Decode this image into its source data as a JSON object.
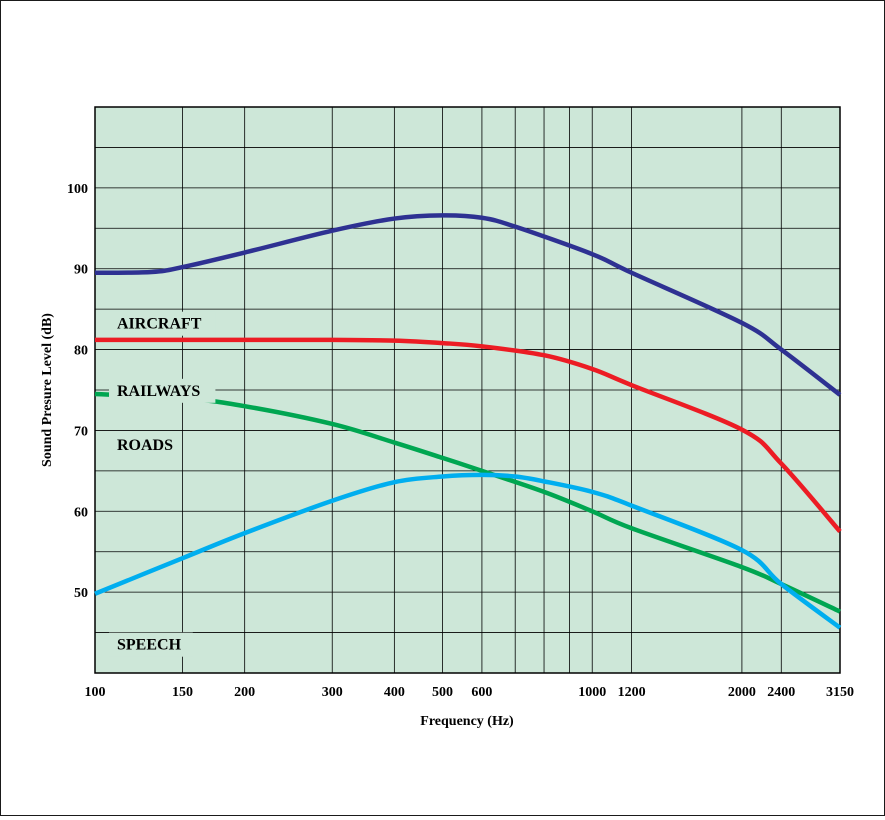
{
  "chart_data": {
    "type": "line",
    "xlabel": "Frequency (Hz)",
    "ylabel": "Sound Presure Level (dB)",
    "x_scale": "log",
    "xlim": [
      100,
      3150
    ],
    "ylim": [
      40,
      110
    ],
    "grid": true,
    "x_ticks": [
      100,
      150,
      200,
      300,
      400,
      500,
      600,
      1000,
      1200,
      2000,
      2400,
      3150
    ],
    "x_tick_labels": [
      "100",
      "150",
      "200",
      "300",
      "400",
      "500",
      "600",
      "1000",
      "1200",
      "2000",
      "2400",
      "3150"
    ],
    "x_minor_gridlines": [
      700,
      800,
      900
    ],
    "y_gridlines": [
      45,
      50,
      55,
      60,
      65,
      70,
      75,
      80,
      85,
      90,
      95,
      100,
      105
    ],
    "y_ticks": [
      50,
      60,
      70,
      80,
      90,
      100
    ],
    "y_tick_labels": [
      "50",
      "60",
      "70",
      "80",
      "90",
      "100"
    ],
    "series": [
      {
        "name": "AIRCRAFT",
        "color": "#2e3192",
        "points": [
          [
            100,
            89.5
          ],
          [
            130,
            89.6
          ],
          [
            150,
            90.2
          ],
          [
            200,
            92.0
          ],
          [
            300,
            94.7
          ],
          [
            400,
            96.2
          ],
          [
            500,
            96.6
          ],
          [
            600,
            96.3
          ],
          [
            700,
            95.2
          ],
          [
            1000,
            91.8
          ],
          [
            1200,
            89.5
          ],
          [
            2000,
            83.3
          ],
          [
            2400,
            80.0
          ],
          [
            3150,
            74.4
          ]
        ]
      },
      {
        "name": "RAILWAYS",
        "color": "#ec1c24",
        "points": [
          [
            100,
            81.2
          ],
          [
            200,
            81.2
          ],
          [
            300,
            81.2
          ],
          [
            400,
            81.1
          ],
          [
            500,
            80.8
          ],
          [
            600,
            80.4
          ],
          [
            800,
            79.3
          ],
          [
            1000,
            77.6
          ],
          [
            1200,
            75.6
          ],
          [
            2000,
            70.1
          ],
          [
            2400,
            65.9
          ],
          [
            3150,
            57.5
          ]
        ]
      },
      {
        "name": "ROADS",
        "color": "#00a651",
        "points": [
          [
            100,
            74.5
          ],
          [
            150,
            74.0
          ],
          [
            200,
            73.0
          ],
          [
            300,
            70.8
          ],
          [
            400,
            68.5
          ],
          [
            500,
            66.6
          ],
          [
            600,
            65.0
          ],
          [
            800,
            62.4
          ],
          [
            1000,
            60.0
          ],
          [
            1200,
            57.9
          ],
          [
            2000,
            53.1
          ],
          [
            2400,
            51.0
          ],
          [
            3150,
            47.6
          ]
        ]
      },
      {
        "name": "SPEECH",
        "color": "#00aeef",
        "points": [
          [
            100,
            49.8
          ],
          [
            150,
            54.2
          ],
          [
            200,
            57.3
          ],
          [
            300,
            61.3
          ],
          [
            400,
            63.6
          ],
          [
            500,
            64.3
          ],
          [
            600,
            64.5
          ],
          [
            700,
            64.3
          ],
          [
            800,
            63.7
          ],
          [
            1000,
            62.4
          ],
          [
            1200,
            60.7
          ],
          [
            2000,
            55.2
          ],
          [
            2400,
            51.0
          ],
          [
            3150,
            45.6
          ]
        ]
      }
    ]
  }
}
